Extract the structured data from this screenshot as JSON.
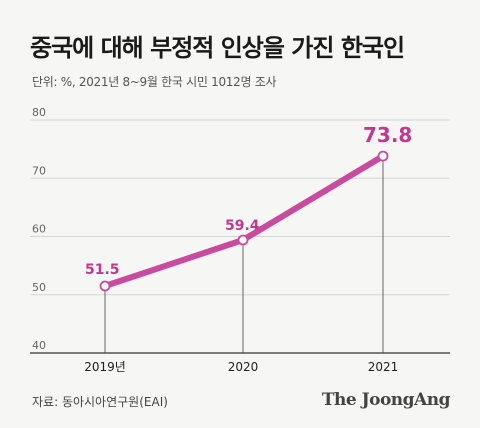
{
  "title": "중국에 대해 부정적 인상을 가진 한국인",
  "subtitle": "단위: %, 2021년 8~9월 한국 시민 1012명 조사",
  "source": "자료: 동아시아연구원(EAI)",
  "logo": "The JoongAng",
  "colors": {
    "line": "#c94a9e",
    "label": "#c0398f",
    "grid": "#d6d6d6",
    "axis": "#333333",
    "background": "#f6f6f4"
  },
  "chart_data": {
    "type": "line",
    "title": "중국에 대해 부정적 인상을 가진 한국인",
    "subtitle": "단위: %, 2021년 8~9월 한국 시민 1012명 조사",
    "categories": [
      "2019년",
      "2020",
      "2021"
    ],
    "series": [
      {
        "values": [
          51.5,
          59.4,
          73.8
        ]
      }
    ],
    "data_labels": [
      "51.5",
      "59.4",
      "73.8"
    ],
    "yticks": [
      40,
      50,
      60,
      70,
      80
    ],
    "ylim": [
      40,
      80
    ],
    "grid": true,
    "legend": "none"
  }
}
